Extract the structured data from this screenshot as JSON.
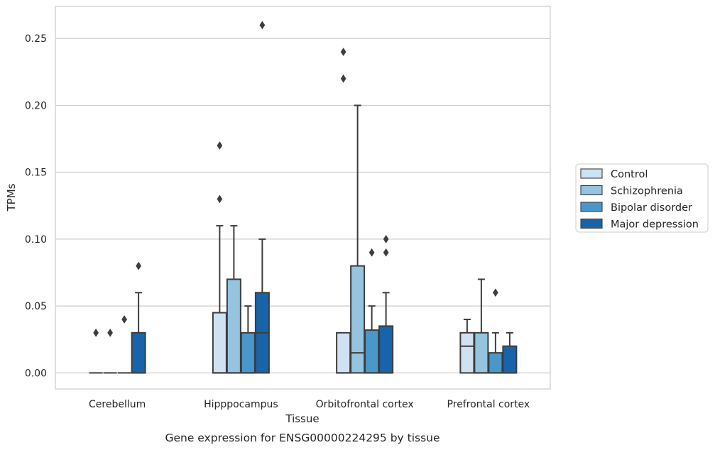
{
  "chart_data": {
    "type": "boxplot",
    "title": "",
    "caption": "Gene expression for ENSG00000224295 by tissue",
    "xlabel": "Tissue",
    "ylabel": "TPMs",
    "ylim": [
      -0.012,
      0.274
    ],
    "yticks": [
      0.0,
      0.05,
      0.1,
      0.15,
      0.2,
      0.25
    ],
    "ytick_labels": [
      "0.00",
      "0.05",
      "0.10",
      "0.15",
      "0.20",
      "0.25"
    ],
    "grid": "horizontal",
    "legend_position": "right",
    "categories": [
      "Cerebellum",
      "Hipppocampus",
      "Orbitofrontal cortex",
      "Prefrontal cortex"
    ],
    "series": [
      {
        "name": "Control",
        "color": "#d0e1f2",
        "boxes": [
          {
            "q1": 0.0,
            "median": 0.0,
            "q3": 0.0,
            "whislo": 0.0,
            "whishi": 0.0,
            "fliers": [
              0.03
            ]
          },
          {
            "q1": 0.0,
            "median": 0.0,
            "q3": 0.045,
            "whislo": 0.0,
            "whishi": 0.11,
            "fliers": [
              0.13,
              0.17
            ]
          },
          {
            "q1": 0.0,
            "median": 0.0,
            "q3": 0.03,
            "whislo": 0.0,
            "whishi": 0.03,
            "fliers": [
              0.22,
              0.24
            ]
          },
          {
            "q1": 0.0,
            "median": 0.02,
            "q3": 0.03,
            "whislo": 0.0,
            "whishi": 0.04,
            "fliers": []
          }
        ]
      },
      {
        "name": "Schizophrenia",
        "color": "#94c4df",
        "boxes": [
          {
            "q1": 0.0,
            "median": 0.0,
            "q3": 0.0,
            "whislo": 0.0,
            "whishi": 0.0,
            "fliers": [
              0.03
            ]
          },
          {
            "q1": 0.0,
            "median": 0.0,
            "q3": 0.07,
            "whislo": 0.0,
            "whishi": 0.11,
            "fliers": []
          },
          {
            "q1": 0.0,
            "median": 0.015,
            "q3": 0.08,
            "whislo": 0.0,
            "whishi": 0.2,
            "fliers": []
          },
          {
            "q1": 0.0,
            "median": 0.0,
            "q3": 0.03,
            "whislo": 0.0,
            "whishi": 0.07,
            "fliers": []
          }
        ]
      },
      {
        "name": "Bipolar disorder",
        "color": "#4a98c9",
        "boxes": [
          {
            "q1": 0.0,
            "median": 0.0,
            "q3": 0.0,
            "whislo": 0.0,
            "whishi": 0.0,
            "fliers": [
              0.04
            ]
          },
          {
            "q1": 0.0,
            "median": 0.0,
            "q3": 0.03,
            "whislo": 0.0,
            "whishi": 0.05,
            "fliers": []
          },
          {
            "q1": 0.0,
            "median": 0.0,
            "q3": 0.032,
            "whislo": 0.0,
            "whishi": 0.05,
            "fliers": [
              0.09
            ]
          },
          {
            "q1": 0.0,
            "median": 0.0,
            "q3": 0.015,
            "whislo": 0.0,
            "whishi": 0.03,
            "fliers": [
              0.06
            ]
          }
        ]
      },
      {
        "name": "Major depression",
        "color": "#1764ab",
        "boxes": [
          {
            "q1": 0.0,
            "median": 0.0,
            "q3": 0.03,
            "whislo": 0.0,
            "whishi": 0.06,
            "fliers": [
              0.08
            ]
          },
          {
            "q1": 0.0,
            "median": 0.03,
            "q3": 0.06,
            "whislo": 0.0,
            "whishi": 0.1,
            "fliers": [
              0.26
            ]
          },
          {
            "q1": 0.0,
            "median": 0.0,
            "q3": 0.035,
            "whislo": 0.0,
            "whishi": 0.06,
            "fliers": [
              0.09,
              0.1
            ]
          },
          {
            "q1": 0.0,
            "median": 0.0,
            "q3": 0.02,
            "whislo": 0.0,
            "whishi": 0.03,
            "fliers": []
          }
        ]
      }
    ]
  }
}
